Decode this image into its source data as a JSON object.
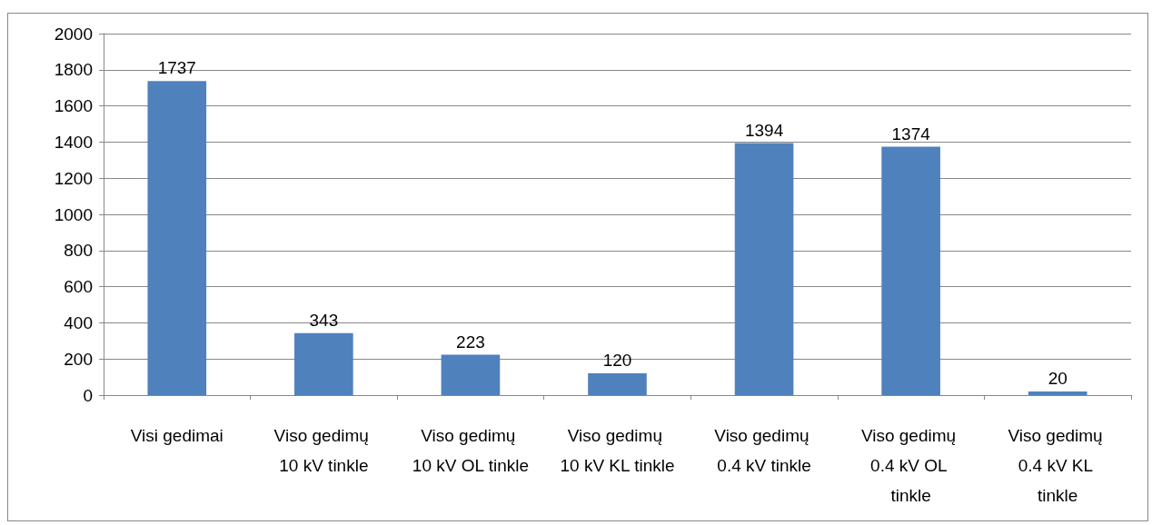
{
  "chart_data": {
    "type": "bar",
    "categories": [
      "Visi gedimai",
      "Viso gedimų 10 kV tinkle",
      "Viso gedimų 10 kV OL tinkle",
      "Viso gedimų 10 kV KL tinkle",
      "Viso gedimų 0.4 kV tinkle",
      "Viso gedimų 0.4 kV OL tinkle",
      "Viso gedimų 0.4 kV KL tinkle"
    ],
    "values": [
      1737,
      343,
      223,
      120,
      1394,
      1374,
      20
    ],
    "color": "#4f81bd",
    "ylim": [
      0,
      2000
    ],
    "yticks": [
      0,
      200,
      400,
      600,
      800,
      1000,
      1200,
      1400,
      1600,
      1800,
      2000
    ],
    "grid": "y",
    "data_labels": true
  }
}
